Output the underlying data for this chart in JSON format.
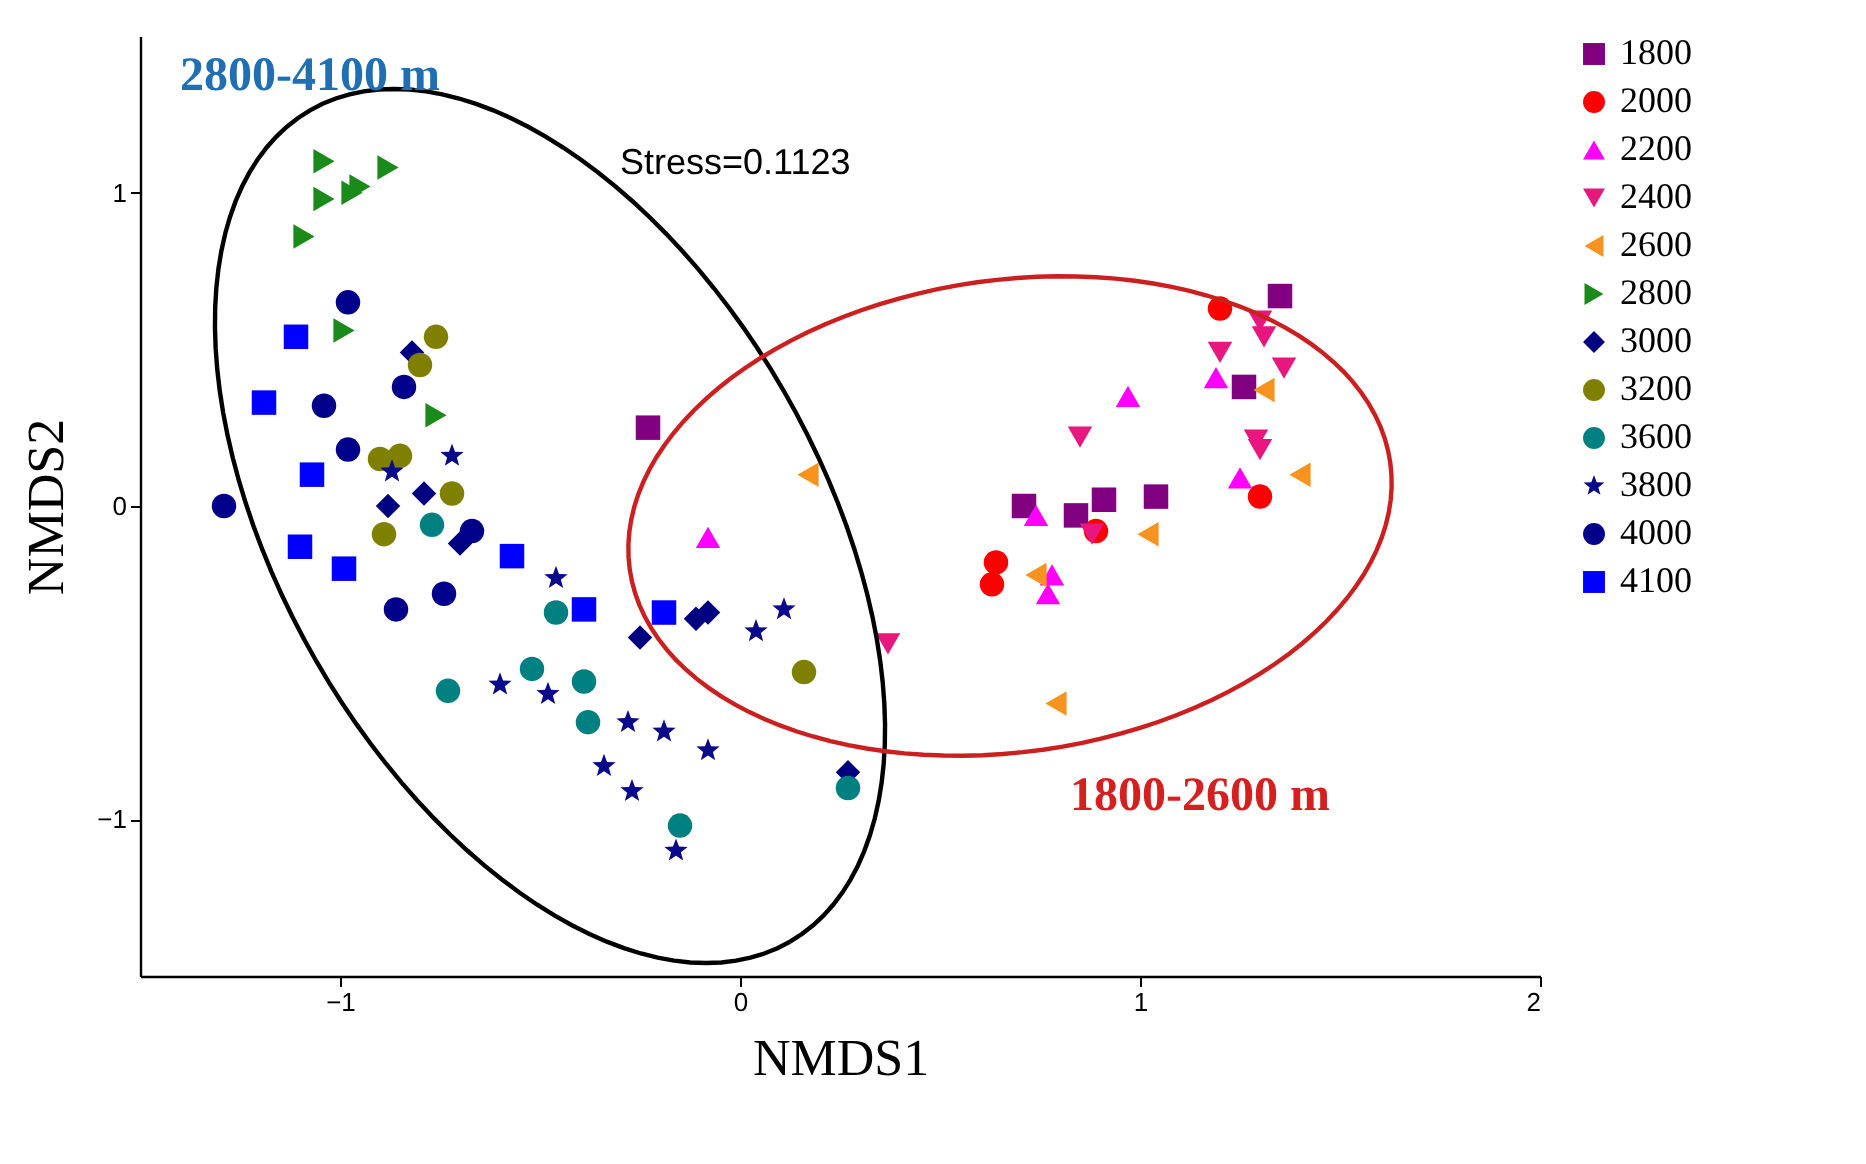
{
  "chart_data": {
    "type": "scatter",
    "xlabel": "NMDS1",
    "ylabel": "NMDS2",
    "xlim": [
      -1.5,
      2
    ],
    "ylim": [
      -1.5,
      1.5
    ],
    "xticks": [
      -1,
      0,
      1,
      2
    ],
    "yticks": [
      -1,
      0,
      1
    ],
    "grid": false,
    "legend": "right",
    "annotations": [
      "2800-4100 m",
      "Stress=0.1123",
      "1800-2600 m"
    ],
    "series": [
      {
        "name": "1800",
        "color": "#800080",
        "marker": "square",
        "x": [
          -0.23,
          1.35,
          1.26,
          0.71,
          0.84,
          0.91,
          1.04
        ],
        "values": [
          0.25,
          0.67,
          0.38,
          0.0,
          -0.03,
          0.02,
          0.03
        ]
      },
      {
        "name": "2000",
        "color": "#ff0000",
        "marker": "circle",
        "x": [
          1.2,
          1.3,
          0.64,
          0.63,
          0.89
        ],
        "values": [
          0.63,
          0.03,
          -0.18,
          -0.25,
          -0.08
        ]
      },
      {
        "name": "2200",
        "color": "#ff00ff",
        "marker": "triangle-up",
        "x": [
          0.97,
          1.19,
          1.25,
          0.74,
          0.77,
          0.78,
          -0.08
        ],
        "values": [
          0.35,
          0.41,
          0.09,
          -0.03,
          -0.28,
          -0.22,
          -0.1
        ]
      },
      {
        "name": "2400",
        "color": "#e8177f",
        "marker": "triangle-down",
        "x": [
          0.37,
          1.3,
          1.31,
          1.2,
          1.36,
          0.85,
          1.29,
          1.3,
          0.88
        ],
        "values": [
          -0.44,
          0.59,
          0.54,
          0.49,
          0.44,
          0.22,
          0.21,
          0.18,
          -0.09
        ]
      },
      {
        "name": "2600",
        "color": "#f7931e",
        "marker": "triangle-left",
        "x": [
          0.17,
          1.31,
          1.4,
          1.02,
          0.74,
          0.79
        ],
        "values": [
          0.1,
          0.37,
          0.1,
          -0.09,
          -0.22,
          -0.63
        ]
      },
      {
        "name": "2800",
        "color": "#1a8a1a",
        "marker": "triangle-right",
        "x": [
          -1.09,
          -1.04,
          -0.95,
          -1.04,
          -0.88,
          -0.97,
          -0.99,
          -0.76
        ],
        "values": [
          0.86,
          0.98,
          1.02,
          1.1,
          1.08,
          1.0,
          0.56,
          0.29
        ]
      },
      {
        "name": "3000",
        "color": "#000080",
        "marker": "diamond",
        "x": [
          -0.82,
          -0.88,
          -0.79,
          -0.7,
          -0.25,
          -0.08,
          -0.11,
          0.27
        ],
        "values": [
          0.49,
          0.0,
          0.04,
          -0.12,
          -0.42,
          -0.34,
          -0.36,
          -0.85
        ]
      },
      {
        "name": "3200",
        "color": "#808000",
        "marker": "circle",
        "x": [
          -0.76,
          -0.8,
          -0.9,
          -0.85,
          -0.72,
          -0.89,
          0.16
        ],
        "values": [
          0.54,
          0.45,
          0.15,
          0.16,
          0.04,
          -0.09,
          -0.53
        ]
      },
      {
        "name": "3600",
        "color": "#008080",
        "marker": "circle",
        "x": [
          -0.77,
          -0.46,
          -0.73,
          -0.52,
          -0.39,
          -0.38,
          -0.15,
          0.27
        ],
        "values": [
          -0.06,
          -0.34,
          -0.59,
          -0.52,
          -0.56,
          -0.69,
          -1.02,
          -0.9
        ]
      },
      {
        "name": "3800",
        "color": "#0a0a8a",
        "marker": "star",
        "x": [
          -0.72,
          -0.87,
          -0.46,
          -0.6,
          -0.48,
          -0.28,
          -0.19,
          -0.08,
          -0.34,
          -0.27,
          -0.16,
          0.04,
          0.11
        ],
        "values": [
          0.16,
          0.11,
          -0.23,
          -0.57,
          -0.6,
          -0.69,
          -0.72,
          -0.78,
          -0.83,
          -0.91,
          -1.1,
          -0.4,
          -0.33
        ]
      },
      {
        "name": "4000",
        "color": "#00008b",
        "marker": "circle",
        "x": [
          -0.98,
          -1.04,
          -0.84,
          -0.98,
          -1.29,
          -0.67,
          -0.74,
          -0.86
        ],
        "values": [
          0.65,
          0.32,
          0.38,
          0.18,
          0.0,
          -0.08,
          -0.28,
          -0.33
        ]
      },
      {
        "name": "4100",
        "color": "#0000ff",
        "marker": "square",
        "x": [
          -1.11,
          -1.19,
          -1.07,
          -1.1,
          -0.99,
          -0.57,
          -0.39,
          -0.19
        ],
        "values": [
          0.54,
          0.33,
          0.1,
          -0.13,
          -0.2,
          -0.16,
          -0.33,
          -0.34
        ]
      }
    ]
  }
}
